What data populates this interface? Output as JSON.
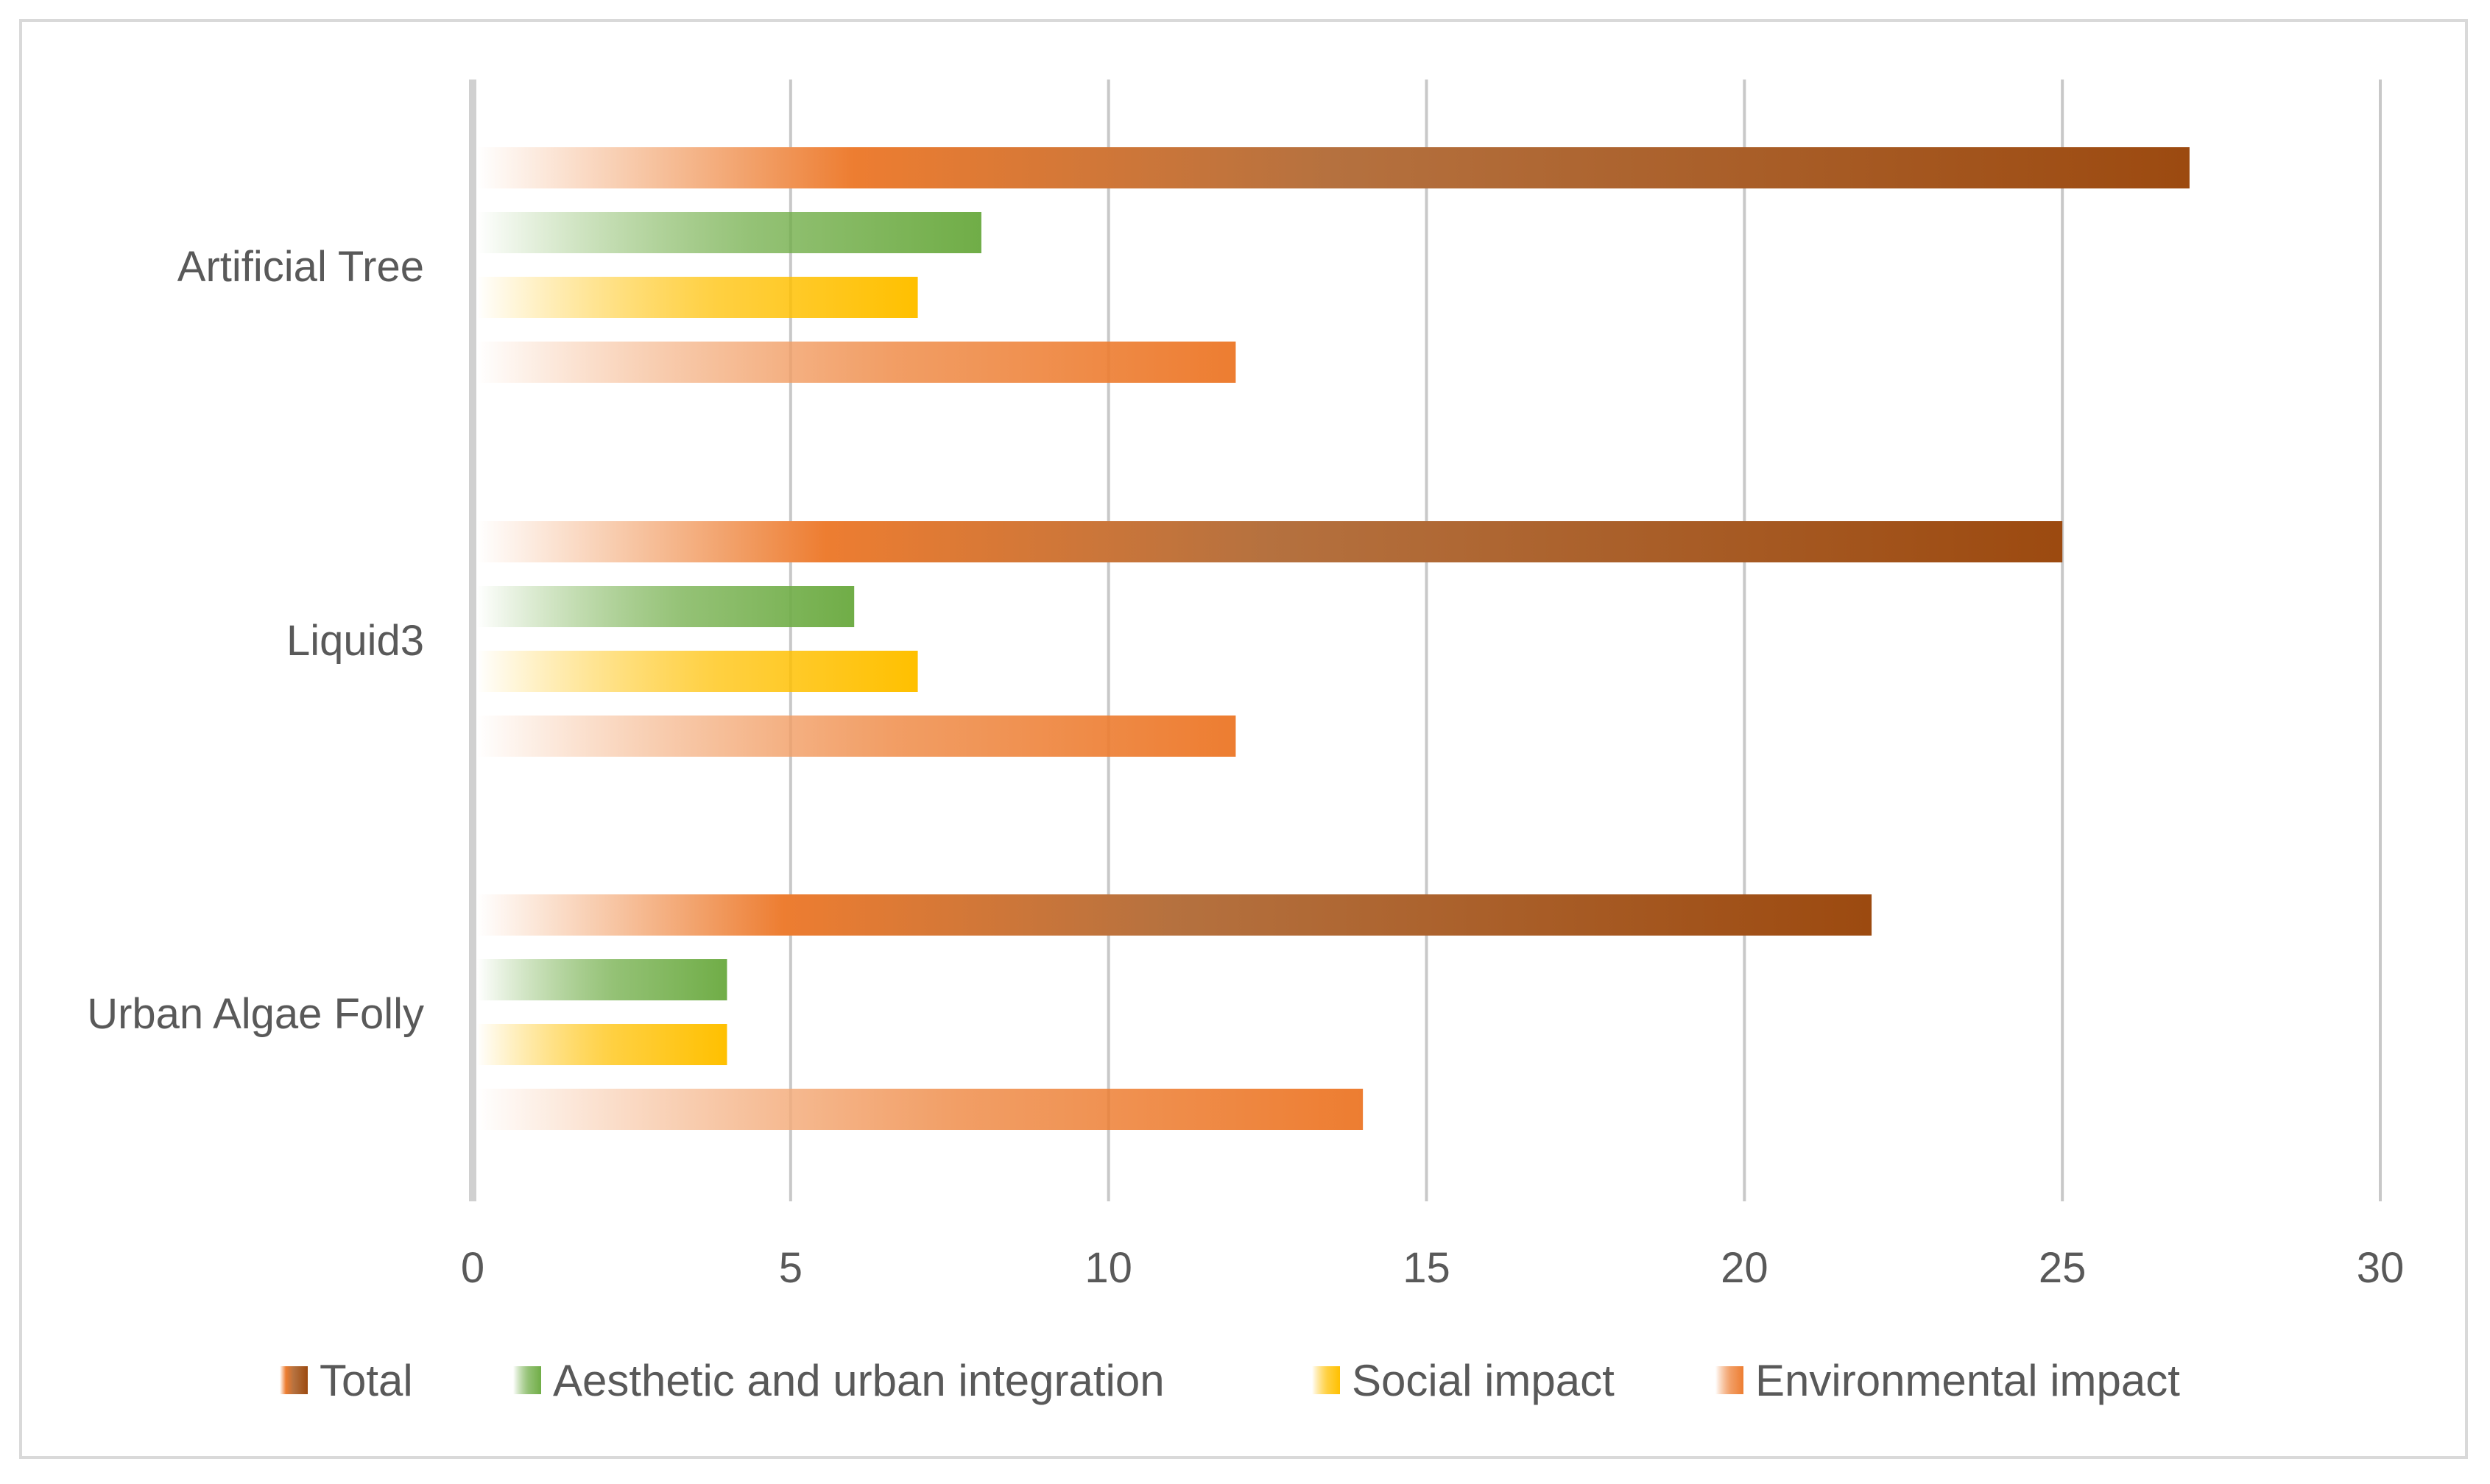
{
  "chart_data": {
    "type": "bar",
    "orientation": "horizontal",
    "categories": [
      "Artificial Tree",
      "Liquid3",
      "Urban Algae Folly"
    ],
    "series": [
      {
        "name": "Total",
        "values": [
          27,
          25,
          22
        ],
        "color": "#9c4a10"
      },
      {
        "name": "Aesthetic and urban integration",
        "values": [
          8,
          6,
          4
        ],
        "color": "#70ad47"
      },
      {
        "name": "Social impact",
        "values": [
          7,
          7,
          4
        ],
        "color": "#ffc000"
      },
      {
        "name": "Environmental impact",
        "values": [
          12,
          12,
          14
        ],
        "color": "#ed7d31"
      }
    ],
    "xticks": [
      "0",
      "5",
      "10",
      "15",
      "20",
      "25",
      "30"
    ],
    "xlim": [
      0,
      30
    ],
    "grid": "vertical",
    "legend_position": "bottom"
  }
}
